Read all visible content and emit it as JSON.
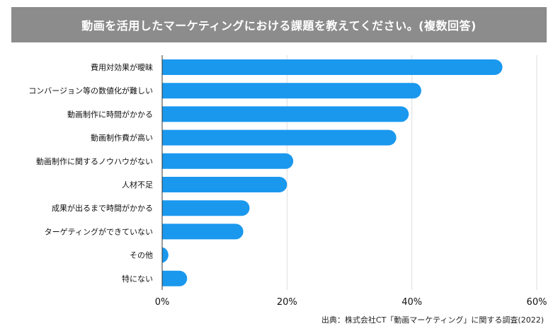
{
  "header": {
    "title": "動画を活用したマーケティングにおける課題を教えてください。(複数回答)"
  },
  "footer": {
    "source": "出典：株式会社CT「動画マーケティング」に関する調査(2022)"
  },
  "colors": {
    "bar": "#1a98ee",
    "title_bg": "#8c8c8c",
    "grid": "#dddddd"
  },
  "chart_data": {
    "type": "bar",
    "orientation": "horizontal",
    "categories": [
      "費用対効果が曖昧",
      "コンバージョン等の数値化が難しい",
      "動画制作に時間がかかる",
      "動画制作費が高い",
      "動画制作に関するノウハウがない",
      "人材不足",
      "成果が出るまで時間がかかる",
      "ターゲティングができていない",
      "その他",
      "特にない"
    ],
    "values": [
      54.5,
      41.5,
      39.5,
      37.5,
      21.0,
      20.0,
      14.0,
      13.0,
      1.0,
      4.0
    ],
    "xlim": [
      0,
      60
    ],
    "xticks": [
      "0%",
      "20%",
      "40%",
      "60%"
    ],
    "grid": true
  }
}
